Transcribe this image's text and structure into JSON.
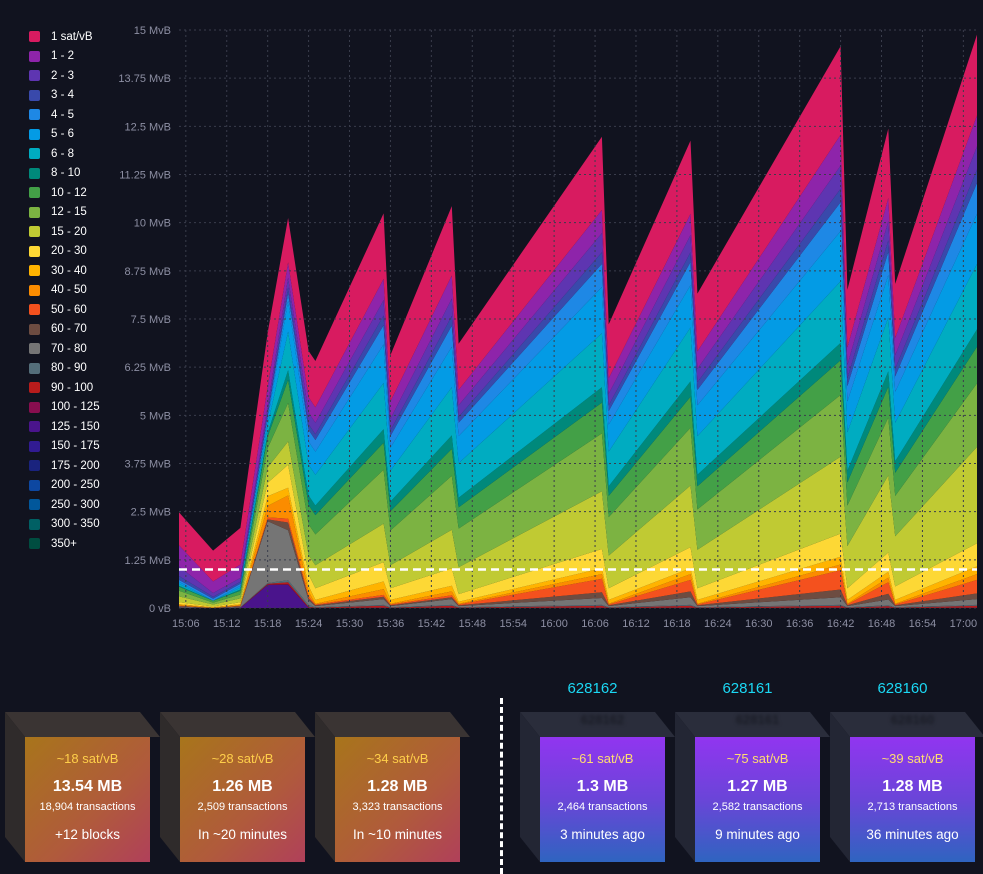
{
  "chart_data": {
    "type": "area",
    "stacked": true,
    "y_unit": "MvB",
    "y_ticks": [
      "15 MvB",
      "13.75 MvB",
      "12.5 MvB",
      "11.25 MvB",
      "10 MvB",
      "8.75 MvB",
      "7.5 MvB",
      "6.25 MvB",
      "5 MvB",
      "3.75 MvB",
      "2.5 MvB",
      "1.25 MvB",
      "0 vB"
    ],
    "ylim": [
      0,
      15
    ],
    "x_ticks": [
      "15:06",
      "15:12",
      "15:18",
      "15:24",
      "15:30",
      "15:36",
      "15:42",
      "15:48",
      "15:54",
      "16:00",
      "16:06",
      "16:12",
      "16:18",
      "16:24",
      "16:30",
      "16:36",
      "16:42",
      "16:48",
      "16:54",
      "17:00"
    ],
    "xlim_minutes": [
      905,
      1022
    ],
    "grid": true,
    "legend_position": "left",
    "reference_line": {
      "value": 1,
      "style": "dashed",
      "color": "#ffffff"
    },
    "x": [
      905,
      910,
      914,
      918,
      921,
      924,
      925,
      935,
      936,
      945,
      946,
      967,
      968,
      980,
      981,
      1002,
      1003,
      1009,
      1010,
      1022
    ],
    "series": [
      {
        "name": "1 sat/vB",
        "color": "#d81b60",
        "values": [
          0.85,
          0.8,
          0.95,
          1.4,
          1.15,
          1.2,
          1.2,
          1.7,
          1.2,
          1.8,
          1.2,
          1.9,
          1.4,
          1.9,
          1.5,
          2.3,
          1.5,
          1.8,
          1.4,
          2.1
        ]
      },
      {
        "name": "1 - 2",
        "color": "#8e24aa",
        "values": [
          0.55,
          0.3,
          0.35,
          0.5,
          0.4,
          0.4,
          0.4,
          0.55,
          0.45,
          0.6,
          0.4,
          0.6,
          0.4,
          0.55,
          0.45,
          0.8,
          0.45,
          0.6,
          0.45,
          0.8
        ]
      },
      {
        "name": "2 - 3",
        "color": "#5e35b1",
        "values": [
          0.25,
          0.1,
          0.1,
          0.15,
          0.25,
          0.3,
          0.3,
          0.4,
          0.3,
          0.45,
          0.3,
          0.5,
          0.3,
          0.45,
          0.35,
          0.6,
          0.35,
          0.5,
          0.35,
          0.6
        ]
      },
      {
        "name": "3 - 4",
        "color": "#3949ab",
        "values": [
          0.1,
          0.05,
          0.05,
          0.1,
          0.15,
          0.15,
          0.15,
          0.25,
          0.15,
          0.25,
          0.15,
          0.3,
          0.15,
          0.25,
          0.2,
          0.35,
          0.2,
          0.3,
          0.2,
          0.35
        ]
      },
      {
        "name": "4 - 5",
        "color": "#1e88e5",
        "values": [
          0.05,
          0.05,
          0.05,
          0.1,
          0.2,
          0.3,
          0.3,
          0.5,
          0.3,
          0.55,
          0.35,
          0.6,
          0.35,
          0.6,
          0.4,
          0.75,
          0.4,
          0.6,
          0.4,
          0.8
        ]
      },
      {
        "name": "5 - 6",
        "color": "#039be5",
        "values": [
          0.05,
          0.0,
          0.05,
          0.15,
          0.8,
          0.6,
          0.6,
          1.0,
          0.6,
          1.05,
          0.7,
          1.2,
          0.7,
          1.1,
          0.8,
          1.3,
          0.8,
          1.1,
          0.8,
          1.3
        ]
      },
      {
        "name": "6 - 8",
        "color": "#00acc1",
        "values": [
          0.05,
          0.0,
          0.05,
          0.2,
          1.0,
          0.8,
          0.8,
          1.2,
          0.8,
          1.25,
          0.9,
          1.4,
          0.9,
          1.4,
          1.0,
          1.6,
          1.0,
          1.4,
          1.0,
          1.7
        ]
      },
      {
        "name": "8 - 10",
        "color": "#00897b",
        "values": [
          0.03,
          0.0,
          0.03,
          0.1,
          0.25,
          0.25,
          0.25,
          0.35,
          0.25,
          0.35,
          0.25,
          0.4,
          0.25,
          0.4,
          0.3,
          0.45,
          0.3,
          0.4,
          0.3,
          0.45
        ]
      },
      {
        "name": "10 - 12",
        "color": "#43a047",
        "values": [
          0.1,
          0.05,
          0.1,
          0.3,
          0.6,
          0.5,
          0.5,
          0.7,
          0.5,
          0.7,
          0.55,
          0.8,
          0.55,
          0.8,
          0.6,
          0.9,
          0.6,
          0.8,
          0.6,
          0.95
        ]
      },
      {
        "name": "12 - 15",
        "color": "#7cb342",
        "values": [
          0.15,
          0.05,
          0.1,
          0.5,
          1.0,
          0.8,
          0.8,
          1.4,
          0.9,
          1.4,
          1.0,
          1.5,
          1.0,
          1.5,
          1.05,
          1.6,
          1.05,
          1.5,
          1.05,
          1.65
        ]
      },
      {
        "name": "15 - 20",
        "color": "#c0ca33",
        "values": [
          0.15,
          0.05,
          0.1,
          0.4,
          0.6,
          0.5,
          0.6,
          1.0,
          0.6,
          1.0,
          0.7,
          1.5,
          0.85,
          1.6,
          1.0,
          2.0,
          1.1,
          2.0,
          1.3,
          2.5
        ]
      },
      {
        "name": "20 - 30",
        "color": "#fdd835",
        "values": [
          0.05,
          0.02,
          0.05,
          0.35,
          0.6,
          0.3,
          0.3,
          0.5,
          0.3,
          0.45,
          0.2,
          0.5,
          0.3,
          0.55,
          0.3,
          0.6,
          0.3,
          0.5,
          0.35,
          0.6
        ]
      },
      {
        "name": "30 - 40",
        "color": "#ffb300",
        "values": [
          0.02,
          0.01,
          0.02,
          0.25,
          0.2,
          0.15,
          0.1,
          0.2,
          0.1,
          0.15,
          0.05,
          0.15,
          0.1,
          0.15,
          0.1,
          0.2,
          0.1,
          0.15,
          0.1,
          0.2
        ]
      },
      {
        "name": "40 - 50",
        "color": "#fb8c00",
        "values": [
          0.02,
          0.01,
          0.02,
          0.3,
          0.6,
          0.12,
          0.02,
          0.15,
          0.02,
          0.1,
          0.02,
          0.12,
          0.02,
          0.15,
          0.02,
          0.15,
          0.02,
          0.12,
          0.02,
          0.15
        ]
      },
      {
        "name": "50 - 60",
        "color": "#f4511e",
        "values": [
          0.01,
          0.0,
          0.01,
          0.05,
          0.1,
          0.05,
          0.02,
          0.05,
          0.02,
          0.05,
          0.02,
          0.35,
          0.02,
          0.3,
          0.02,
          0.5,
          0.02,
          0.3,
          0.02,
          0.35
        ]
      },
      {
        "name": "60 - 70",
        "color": "#6d4c41",
        "values": [
          0.01,
          0.0,
          0.01,
          0.05,
          0.2,
          0.05,
          0.02,
          0.06,
          0.02,
          0.05,
          0.02,
          0.15,
          0.02,
          0.15,
          0.02,
          0.2,
          0.02,
          0.15,
          0.02,
          0.15
        ]
      },
      {
        "name": "70 - 80",
        "color": "#757575",
        "values": [
          0.02,
          0.0,
          0.02,
          1.6,
          1.3,
          0.12,
          0.03,
          0.15,
          0.03,
          0.15,
          0.03,
          0.18,
          0.03,
          0.2,
          0.03,
          0.2,
          0.03,
          0.15,
          0.03,
          0.15
        ]
      },
      {
        "name": "80 - 90",
        "color": "#546e7a",
        "values": [
          0.01,
          0.0,
          0.01,
          0.02,
          0.05,
          0.05,
          0.01,
          0.02,
          0.01,
          0.02,
          0.01,
          0.02,
          0.01,
          0.02,
          0.01,
          0.02,
          0.01,
          0.02,
          0.01,
          0.02
        ]
      },
      {
        "name": "90 - 100",
        "color": "#b71c1c",
        "values": [
          0.01,
          0.0,
          0.01,
          0.02,
          0.05,
          0.02,
          0.01,
          0.05,
          0.01,
          0.05,
          0.01,
          0.05,
          0.01,
          0.05,
          0.01,
          0.05,
          0.01,
          0.04,
          0.01,
          0.05
        ]
      },
      {
        "name": "100 - 125",
        "color": "#880e4f",
        "values": [
          0.0,
          0.0,
          0.0,
          0.01,
          0.02,
          0.01,
          0.0,
          0.01,
          0.0,
          0.01,
          0.0,
          0.01,
          0.0,
          0.01,
          0.0,
          0.01,
          0.0,
          0.01,
          0.0,
          0.01
        ]
      },
      {
        "name": "125 - 150",
        "color": "#4a148c",
        "values": [
          0.0,
          0.0,
          0.0,
          0.6,
          0.6,
          0.0,
          0.0,
          0.0,
          0.0,
          0.0,
          0.0,
          0.0,
          0.0,
          0.0,
          0.0,
          0.0,
          0.0,
          0.0,
          0.0,
          0.0
        ]
      },
      {
        "name": "150 - 175",
        "color": "#311b92",
        "values": [
          0.0,
          0.0,
          0.0,
          0.0,
          0.0,
          0.0,
          0.0,
          0.0,
          0.0,
          0.0,
          0.0,
          0.0,
          0.0,
          0.0,
          0.0,
          0.0,
          0.0,
          0.0,
          0.0,
          0.0
        ]
      },
      {
        "name": "175 - 200",
        "color": "#1a237e",
        "values": [
          0.0,
          0.0,
          0.0,
          0.0,
          0.0,
          0.0,
          0.0,
          0.0,
          0.0,
          0.0,
          0.0,
          0.0,
          0.0,
          0.0,
          0.0,
          0.0,
          0.0,
          0.0,
          0.0,
          0.0
        ]
      },
      {
        "name": "200 - 250",
        "color": "#0d47a1",
        "values": [
          0.0,
          0.0,
          0.0,
          0.0,
          0.0,
          0.0,
          0.0,
          0.0,
          0.0,
          0.0,
          0.0,
          0.0,
          0.0,
          0.0,
          0.0,
          0.0,
          0.0,
          0.0,
          0.0,
          0.0
        ]
      },
      {
        "name": "250 - 300",
        "color": "#01579b",
        "values": [
          0.0,
          0.0,
          0.0,
          0.0,
          0.0,
          0.0,
          0.0,
          0.0,
          0.0,
          0.0,
          0.0,
          0.0,
          0.0,
          0.0,
          0.0,
          0.0,
          0.0,
          0.0,
          0.0,
          0.0
        ]
      },
      {
        "name": "300 - 350",
        "color": "#006064",
        "values": [
          0.0,
          0.0,
          0.0,
          0.0,
          0.0,
          0.0,
          0.0,
          0.0,
          0.0,
          0.0,
          0.0,
          0.0,
          0.0,
          0.0,
          0.0,
          0.0,
          0.0,
          0.0,
          0.0,
          0.0
        ]
      },
      {
        "name": "350+",
        "color": "#004d40",
        "values": [
          0.0,
          0.0,
          0.0,
          0.0,
          0.0,
          0.0,
          0.0,
          0.0,
          0.0,
          0.0,
          0.0,
          0.0,
          0.0,
          0.0,
          0.0,
          0.0,
          0.0,
          0.0,
          0.0,
          0.0
        ]
      }
    ]
  },
  "mempool_blocks": [
    {
      "fee": "~18 sat/vB",
      "size": "13.54 MB",
      "txs": "18,904 transactions",
      "time": "+12 blocks"
    },
    {
      "fee": "~28 sat/vB",
      "size": "1.26 MB",
      "txs": "2,509 transactions",
      "time": "In ~20 minutes"
    },
    {
      "fee": "~34 sat/vB",
      "size": "1.28 MB",
      "txs": "3,323 transactions",
      "time": "In ~10 minutes"
    }
  ],
  "mined_blocks": [
    {
      "height": "628162",
      "fee": "~61 sat/vB",
      "size": "1.3 MB",
      "txs": "2,464 transactions",
      "time": "3 minutes ago"
    },
    {
      "height": "628161",
      "fee": "~75 sat/vB",
      "size": "1.27 MB",
      "txs": "2,582 transactions",
      "time": "9 minutes ago"
    },
    {
      "height": "628160",
      "fee": "~39 sat/vB",
      "size": "1.28 MB",
      "txs": "2,713 transactions",
      "time": "36 minutes ago"
    }
  ]
}
